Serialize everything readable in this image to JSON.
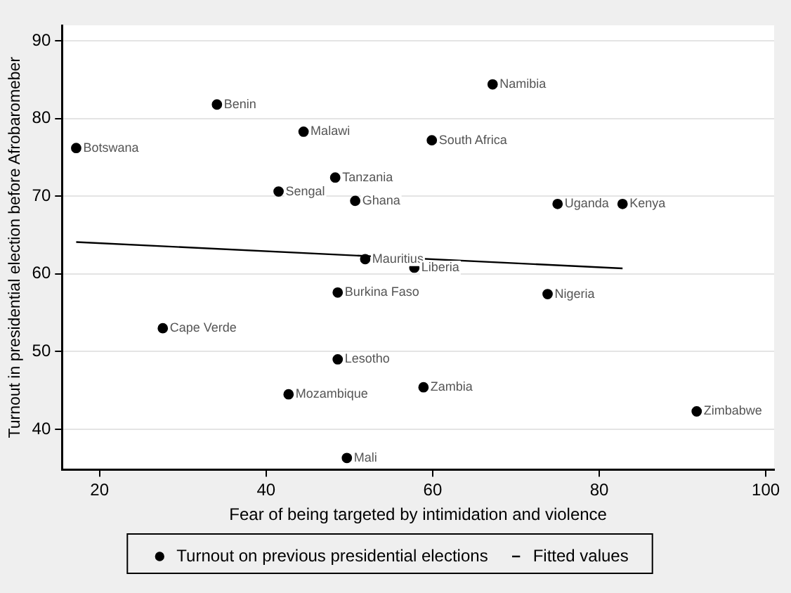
{
  "chart_data": {
    "type": "scatter",
    "xlabel": "Fear of being targeted by intimidation and violence",
    "ylabel": "Turnout in presidential election before Afrobaromeber",
    "xlim": [
      15.5,
      101
    ],
    "xticks": [
      20,
      40,
      60,
      80,
      100
    ],
    "ylim": [
      34.8,
      92
    ],
    "yticks": [
      40,
      50,
      60,
      70,
      80,
      90
    ],
    "grid": "y",
    "legend": "bottom",
    "marker": "circle",
    "series": [
      {
        "name": "Turnout on previous presidential elections",
        "color": "#000000",
        "x": [
          17.2,
          34.1,
          44.5,
          67.2,
          59.9,
          48.3,
          41.5,
          50.7,
          75.0,
          82.8,
          51.9,
          57.8,
          48.6,
          73.8,
          27.6,
          48.6,
          42.7,
          58.9,
          91.7,
          49.7
        ],
        "values": [
          76.2,
          81.8,
          78.3,
          84.4,
          77.2,
          72.4,
          70.6,
          69.4,
          69.0,
          69.0,
          61.9,
          60.8,
          57.6,
          57.4,
          53.0,
          49.0,
          44.5,
          45.4,
          42.3,
          36.3
        ]
      },
      {
        "name": "Fitted values",
        "type": "line",
        "color": "#000000",
        "marker": "none",
        "x": [
          17.2,
          82.8
        ],
        "values": [
          64.1,
          60.7
        ]
      }
    ],
    "annotations": [
      {
        "text": "Botswana",
        "x": 17.2,
        "y": 76.2
      },
      {
        "text": "Benin",
        "x": 34.1,
        "y": 81.8
      },
      {
        "text": "Malawi",
        "x": 44.5,
        "y": 78.3
      },
      {
        "text": "Namibia",
        "x": 67.2,
        "y": 84.4
      },
      {
        "text": "South Africa",
        "x": 59.9,
        "y": 77.2
      },
      {
        "text": "Tanzania",
        "x": 48.3,
        "y": 72.4
      },
      {
        "text": "Sengal",
        "x": 41.5,
        "y": 70.6
      },
      {
        "text": "Ghana",
        "x": 50.7,
        "y": 69.4
      },
      {
        "text": "Uganda",
        "x": 75.0,
        "y": 69.0
      },
      {
        "text": "Kenya",
        "x": 82.8,
        "y": 69.0
      },
      {
        "text": "Mauritius",
        "x": 51.9,
        "y": 61.9
      },
      {
        "text": "Liberia",
        "x": 57.8,
        "y": 60.8
      },
      {
        "text": "Burkina Faso",
        "x": 48.6,
        "y": 57.6
      },
      {
        "text": "Nigeria",
        "x": 73.8,
        "y": 57.4
      },
      {
        "text": "Cape Verde",
        "x": 27.6,
        "y": 53.0
      },
      {
        "text": "Lesotho",
        "x": 48.6,
        "y": 49.0
      },
      {
        "text": "Mozambique",
        "x": 42.7,
        "y": 44.5
      },
      {
        "text": "Zambia",
        "x": 58.9,
        "y": 45.4
      },
      {
        "text": "Zimbabwe",
        "x": 91.7,
        "y": 42.3
      },
      {
        "text": "Mali",
        "x": 49.7,
        "y": 36.3
      }
    ]
  }
}
